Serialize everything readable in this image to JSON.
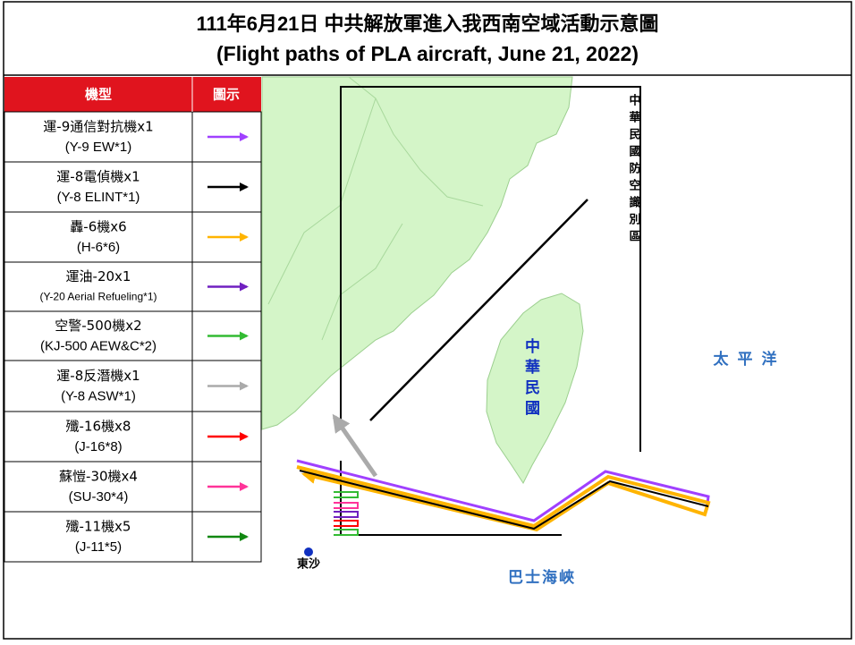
{
  "header": {
    "title_zh": "111年6月21日 中共解放軍進入我西南空域活動示意圖",
    "title_en": "(Flight paths of PLA aircraft, June 21, 2022)"
  },
  "table": {
    "columns": [
      "機型",
      "圖示"
    ],
    "rows": [
      {
        "name_zh": "運-9通信對抗機x1",
        "name_en": "(Y-9 EW*1)",
        "color": "#a040ff"
      },
      {
        "name_zh": "運-8電偵機x1",
        "name_en": "(Y-8 ELINT*1)",
        "color": "#000000"
      },
      {
        "name_zh": "轟-6機x6",
        "name_en": "(H-6*6)",
        "color": "#ffb400"
      },
      {
        "name_zh": "運油-20x1",
        "name_en": "(Y-20 Aerial Refueling*1)",
        "color": "#7020c0"
      },
      {
        "name_zh": "空警-500機x2",
        "name_en": "(KJ-500 AEW&C*2)",
        "color": "#33bb33"
      },
      {
        "name_zh": "運-8反潛機x1",
        "name_en": "(Y-8 ASW*1)",
        "color": "#aaaaaa"
      },
      {
        "name_zh": "殲-16機x8",
        "name_en": "(J-16*8)",
        "color": "#ff0000"
      },
      {
        "name_zh": "蘇愷-30機x4",
        "name_en": "(SU-30*4)",
        "color": "#ff3399"
      },
      {
        "name_zh": "殲-11機x5",
        "name_en": "(J-11*5)",
        "color": "#118811"
      }
    ]
  },
  "map": {
    "adiz_label": "中華民國防空識別區",
    "taiwan_label": "中華民國",
    "pacific_label": "太平洋",
    "bashi_label": "巴士海峽",
    "dongsha_label": "東沙"
  }
}
